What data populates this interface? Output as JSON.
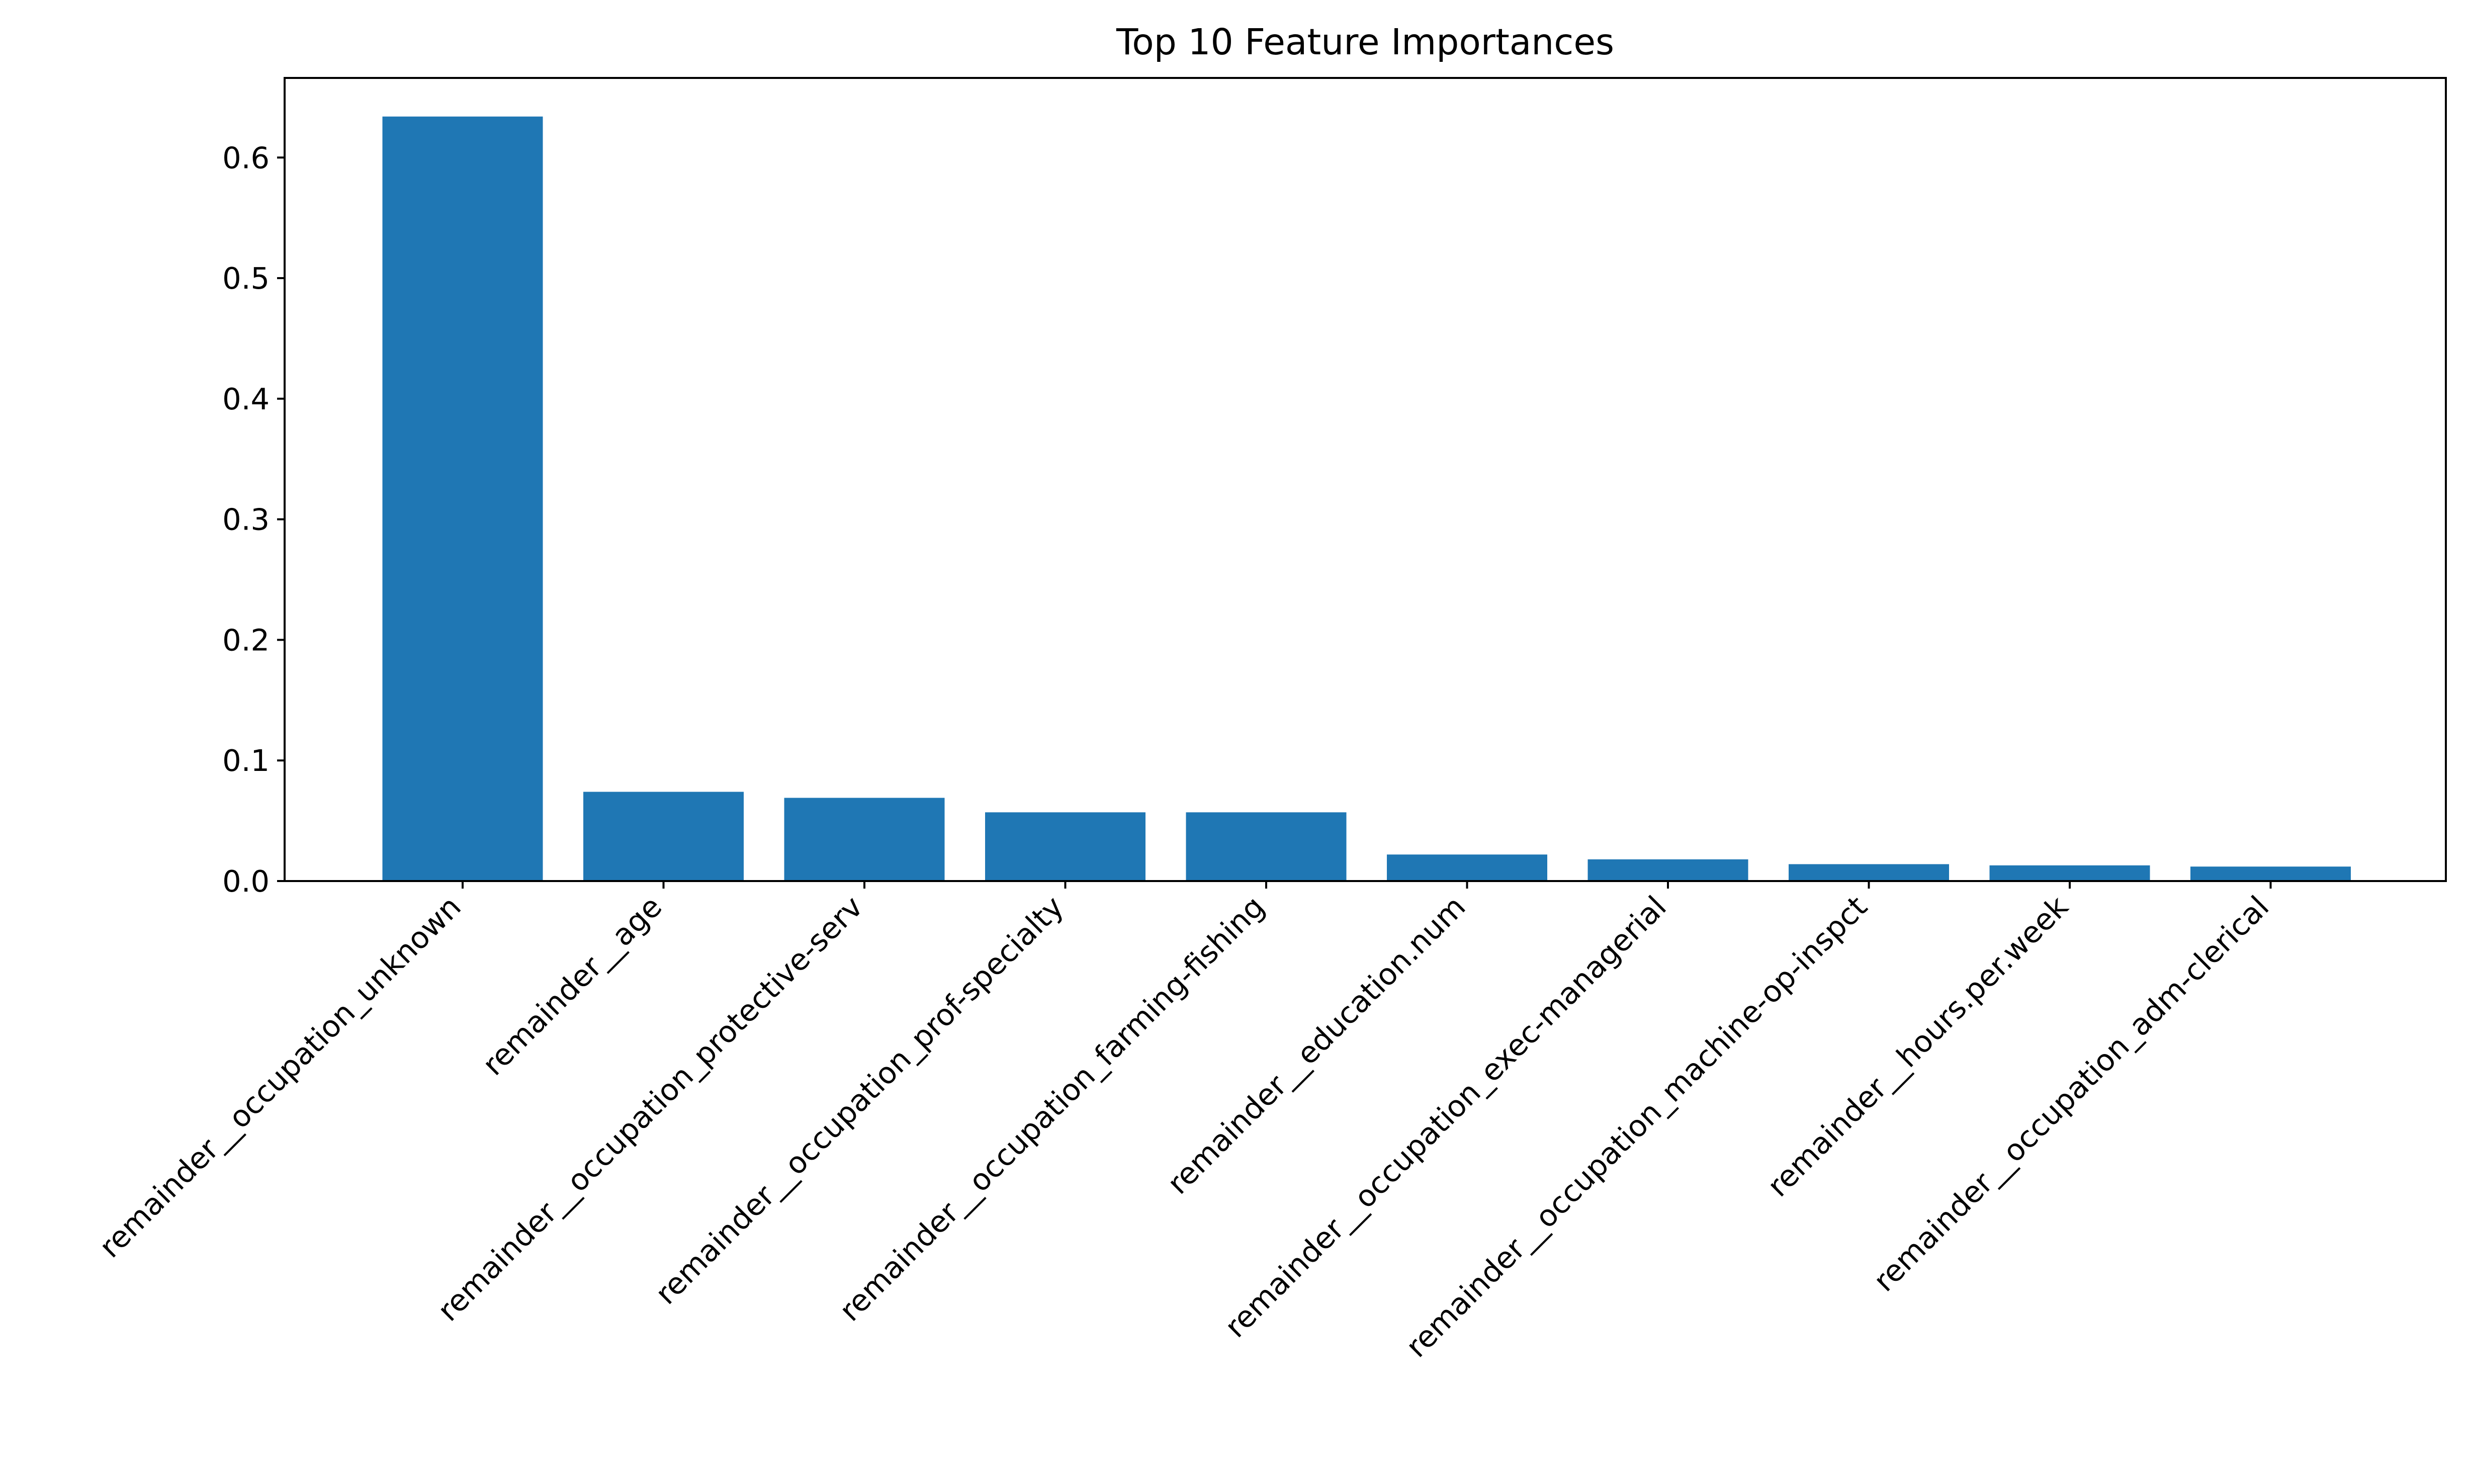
{
  "chart_data": {
    "type": "bar",
    "title": "Top 10 Feature Importances",
    "xlabel": "",
    "ylabel": "",
    "categories": [
      "remainder__occupation_unknown",
      "remainder__age",
      "remainder__occupation_protective-serv",
      "remainder__occupation_prof-specialty",
      "remainder__occupation_farming-fishing",
      "remainder__education.num",
      "remainder__occupation_exec-managerial",
      "remainder__occupation_machine-op-inspct",
      "remainder__hours.per.week",
      "remainder__occupation_adm-clerical"
    ],
    "values": [
      0.634,
      0.074,
      0.069,
      0.057,
      0.057,
      0.022,
      0.018,
      0.014,
      0.013,
      0.012
    ],
    "ylim": [
      0,
      0.666
    ],
    "yticks": [
      0.0,
      0.1,
      0.2,
      0.3,
      0.4,
      0.5,
      0.6
    ],
    "ytick_labels": [
      "0.0",
      "0.1",
      "0.2",
      "0.3",
      "0.4",
      "0.5",
      "0.6"
    ],
    "bar_color": "#1f77b4",
    "grid": false,
    "legend": "none"
  }
}
